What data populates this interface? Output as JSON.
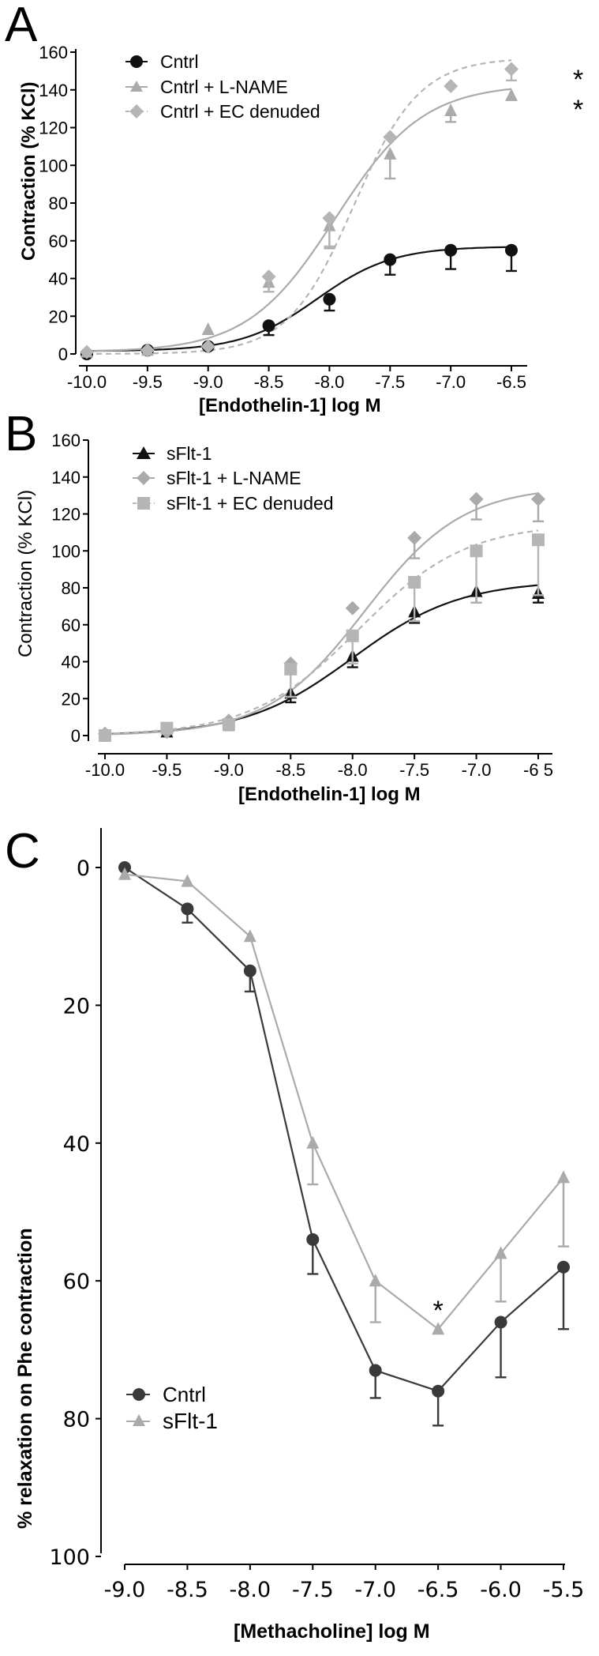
{
  "colors": {
    "black": "#111111",
    "gray": "#aaaaaa",
    "gray2": "#b5b5b5"
  },
  "chart_data": [
    {
      "type": "line",
      "panel": "A",
      "xlabel": "[Endothelin-1] log M",
      "ylabel": "Contraction (% KCl)",
      "xlim": [
        -10.0,
        -6.5
      ],
      "ylim": [
        0,
        160
      ],
      "xticks": [
        -10.0,
        -9.5,
        -9.0,
        -8.5,
        -8.0,
        -7.5,
        -7.0,
        -6.5
      ],
      "xtick_labels": [
        "-10.0",
        "-9.5",
        "-9.0",
        "-8.5",
        "-8.0",
        "-7.5",
        "-7.0",
        "-6.5"
      ],
      "yticks": [
        0,
        20,
        40,
        60,
        80,
        100,
        120,
        140,
        160
      ],
      "ytick_labels": [
        "0",
        "20",
        "40",
        "60",
        "80",
        "100",
        "120",
        "140",
        "160"
      ],
      "legend_position": "top-left",
      "series": [
        {
          "name": "Cntrl",
          "marker": "circle",
          "color": "#111111",
          "dash": false,
          "x": [
            -10.0,
            -9.5,
            -9.0,
            -8.5,
            -8.0,
            -7.5,
            -7.0,
            -6.5
          ],
          "y": [
            0,
            2,
            4,
            15,
            29,
            50,
            55,
            55
          ],
          "err": [
            0,
            0,
            0,
            5,
            6,
            8,
            10,
            11
          ],
          "fit": {
            "bottom": 1.5,
            "top": 57,
            "ec50": -8.1,
            "hill": 1.4
          }
        },
        {
          "name": "Cntrl + L-NAME",
          "marker": "triangle",
          "color": "#aaaaaa",
          "dash": false,
          "x": [
            -10.0,
            -9.5,
            -9.0,
            -8.5,
            -8.0,
            -7.5,
            -7.0,
            -6.5
          ],
          "y": [
            1,
            2,
            13,
            38,
            68,
            106,
            129,
            137
          ],
          "err": [
            0,
            0,
            0,
            5,
            12,
            13,
            6,
            0
          ],
          "fit": {
            "bottom": 1,
            "top": 143,
            "ec50": -7.95,
            "hill": 1.2
          }
        },
        {
          "name": "Cntrl + EC denuded",
          "marker": "diamond",
          "color": "#b5b5b5",
          "dash": true,
          "x": [
            -10.0,
            -9.5,
            -9.0,
            -8.5,
            -8.0,
            -7.5,
            -7.0,
            -6.5
          ],
          "y": [
            1,
            2,
            4,
            41,
            72,
            115,
            142,
            151
          ],
          "err": [
            0,
            0,
            0,
            8,
            15,
            0,
            0,
            6
          ],
          "fit": {
            "bottom": 0,
            "top": 157,
            "ec50": -7.8,
            "hill": 1.6
          }
        }
      ],
      "annotations": [
        {
          "text": "*",
          "series": "Cntrl + EC denuded",
          "x": -6.5
        },
        {
          "text": "*",
          "series": "Cntrl + L-NAME",
          "x": -6.5
        }
      ]
    },
    {
      "type": "line",
      "panel": "B",
      "xlabel": "[Endothelin-1] log M",
      "ylabel": "Contraction (% KCl)",
      "xlim": [
        -10.0,
        -6.5
      ],
      "ylim": [
        0,
        160
      ],
      "xticks": [
        -10.0,
        -9.5,
        -9.0,
        -8.5,
        -8.0,
        -7.5,
        -7.0,
        -6.5
      ],
      "xtick_labels": [
        "-10.0",
        "-9.5",
        "-9.0",
        "-8.5",
        "-8.0",
        "-7.5",
        "-7.0",
        "-6 5"
      ],
      "yticks": [
        0,
        20,
        40,
        60,
        80,
        100,
        120,
        140,
        160
      ],
      "ytick_labels": [
        "0",
        "20",
        "40",
        "60",
        "80",
        "100",
        "120",
        "140",
        "160"
      ],
      "legend_position": "top-left",
      "series": [
        {
          "name": "sFlt-1",
          "marker": "triangle",
          "color": "#111111",
          "dash": false,
          "x": [
            -10.0,
            -9.5,
            -9.0,
            -8.5,
            -8.0,
            -7.5,
            -7.0,
            -6.5
          ],
          "y": [
            0,
            2,
            7,
            23,
            43,
            67,
            78,
            77
          ],
          "err": [
            0,
            0,
            4,
            5,
            6,
            6,
            6,
            5
          ],
          "fit": {
            "bottom": 0,
            "top": 84,
            "ec50": -8.0,
            "hill": 1.0
          }
        },
        {
          "name": "sFlt-1 + L-NAME",
          "marker": "diamond",
          "color": "#aaaaaa",
          "dash": false,
          "x": [
            -10.0,
            -9.5,
            -9.0,
            -8.5,
            -8.0,
            -7.5,
            -7.0,
            -6.5
          ],
          "y": [
            1,
            2,
            8,
            39,
            69,
            107,
            128,
            128
          ],
          "err": [
            0,
            0,
            0,
            0,
            0,
            11,
            11,
            12
          ],
          "fit": {
            "bottom": 0,
            "top": 135,
            "ec50": -7.9,
            "hill": 1.1
          }
        },
        {
          "name": "sFlt-1 + EC denuded",
          "marker": "square",
          "color": "#b5b5b5",
          "dash": true,
          "x": [
            -10.0,
            -9.5,
            -9.0,
            -8.5,
            -8.0,
            -7.5,
            -7.0,
            -6.5
          ],
          "y": [
            0,
            4,
            6,
            36,
            54,
            83,
            100,
            106
          ],
          "err": [
            0,
            0,
            0,
            15,
            15,
            21,
            28,
            30
          ],
          "fit": {
            "bottom": 0,
            "top": 115,
            "ec50": -7.95,
            "hill": 1.0
          }
        }
      ],
      "annotations": []
    },
    {
      "type": "line",
      "panel": "C",
      "xlabel": "[Methacholine] log M",
      "ylabel": "% relaxation on Phe contraction",
      "xlim": [
        -9.0,
        -5.5
      ],
      "ylim": [
        0,
        100
      ],
      "y_inverted": true,
      "xticks": [
        -9.0,
        -8.5,
        -8.0,
        -7.5,
        -7.0,
        -6.5,
        -6.0,
        -5.5
      ],
      "xtick_labels": [
        "-9.0",
        "-8.5",
        "-8.0",
        "-7.5",
        "-7.0",
        "-6.5",
        "-6.0",
        "-5.5"
      ],
      "yticks": [
        0,
        20,
        40,
        60,
        80,
        100
      ],
      "ytick_labels": [
        "0",
        "20",
        "40",
        "60",
        "80",
        "100"
      ],
      "legend_position": "bottom-left",
      "series": [
        {
          "name": "Cntrl",
          "marker": "circle",
          "color": "#3a3a3a",
          "dash": false,
          "x": [
            -9.0,
            -8.5,
            -8.0,
            -7.5,
            -7.0,
            -6.5,
            -6.0,
            -5.5
          ],
          "y": [
            0,
            6,
            15,
            54,
            73,
            76,
            66,
            58
          ],
          "err": [
            0,
            2,
            3,
            5,
            4,
            5,
            8,
            9
          ]
        },
        {
          "name": "sFlt-1",
          "marker": "triangle",
          "color": "#aaaaaa",
          "dash": false,
          "x": [
            -9.0,
            -8.5,
            -8.0,
            -7.5,
            -7.0,
            -6.5,
            -6.0,
            -5.5
          ],
          "y": [
            1,
            2,
            10,
            40,
            60,
            67,
            56,
            45
          ],
          "err": [
            0,
            0,
            0,
            6,
            6,
            0,
            7,
            10
          ]
        }
      ],
      "annotations": [
        {
          "text": "*",
          "series": "sFlt-1",
          "x": -6.5
        }
      ]
    }
  ]
}
